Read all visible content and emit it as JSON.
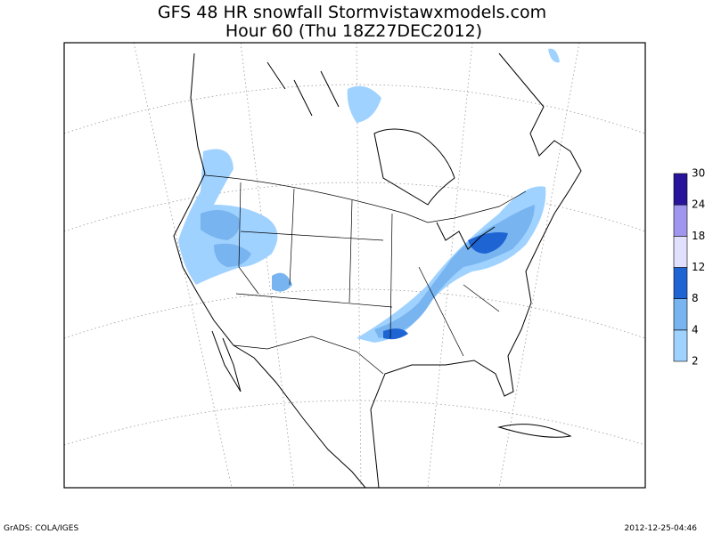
{
  "header": {
    "title": "GFS 48 HR snowfall Stormvistawxmodels.com",
    "subtitle": "Hour 60 (Thu 18Z27DEC2012)"
  },
  "legend": {
    "levels": [
      2,
      4,
      8,
      12,
      18,
      24,
      30
    ],
    "colors": [
      "#a0d2ff",
      "#78b4f0",
      "#1e64d2",
      "#e1e1ff",
      "#a096f0",
      "#28149b"
    ]
  },
  "footer": {
    "left": "GrADS: COLA/IGES",
    "right": "2012-12-25-04:46"
  }
}
